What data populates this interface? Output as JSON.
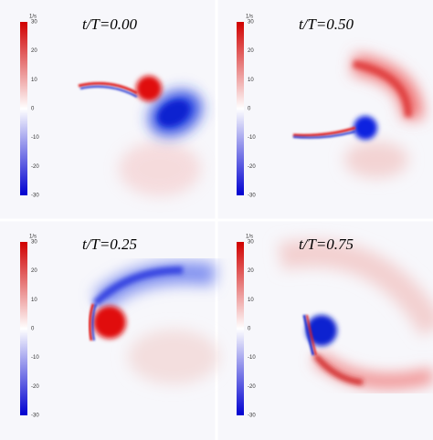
{
  "panels": [
    {
      "title": "t/T=0.00",
      "colorbar": {
        "unit": "1/s",
        "ticks": [
          30,
          20,
          10,
          0,
          -10,
          -20,
          -30
        ]
      }
    },
    {
      "title": "t/T=0.50",
      "colorbar": {
        "unit": "1/s",
        "ticks": [
          30,
          20,
          10,
          0,
          -10,
          -20,
          -30
        ]
      }
    },
    {
      "title": "t/T=0.25",
      "colorbar": {
        "unit": "1/s",
        "ticks": [
          30,
          20,
          10,
          0,
          -10,
          -20,
          -30
        ]
      }
    },
    {
      "title": "t/T=0.75",
      "colorbar": {
        "unit": "1/s",
        "ticks": [
          30,
          20,
          10,
          0,
          -10,
          -20,
          -30
        ]
      }
    }
  ]
}
